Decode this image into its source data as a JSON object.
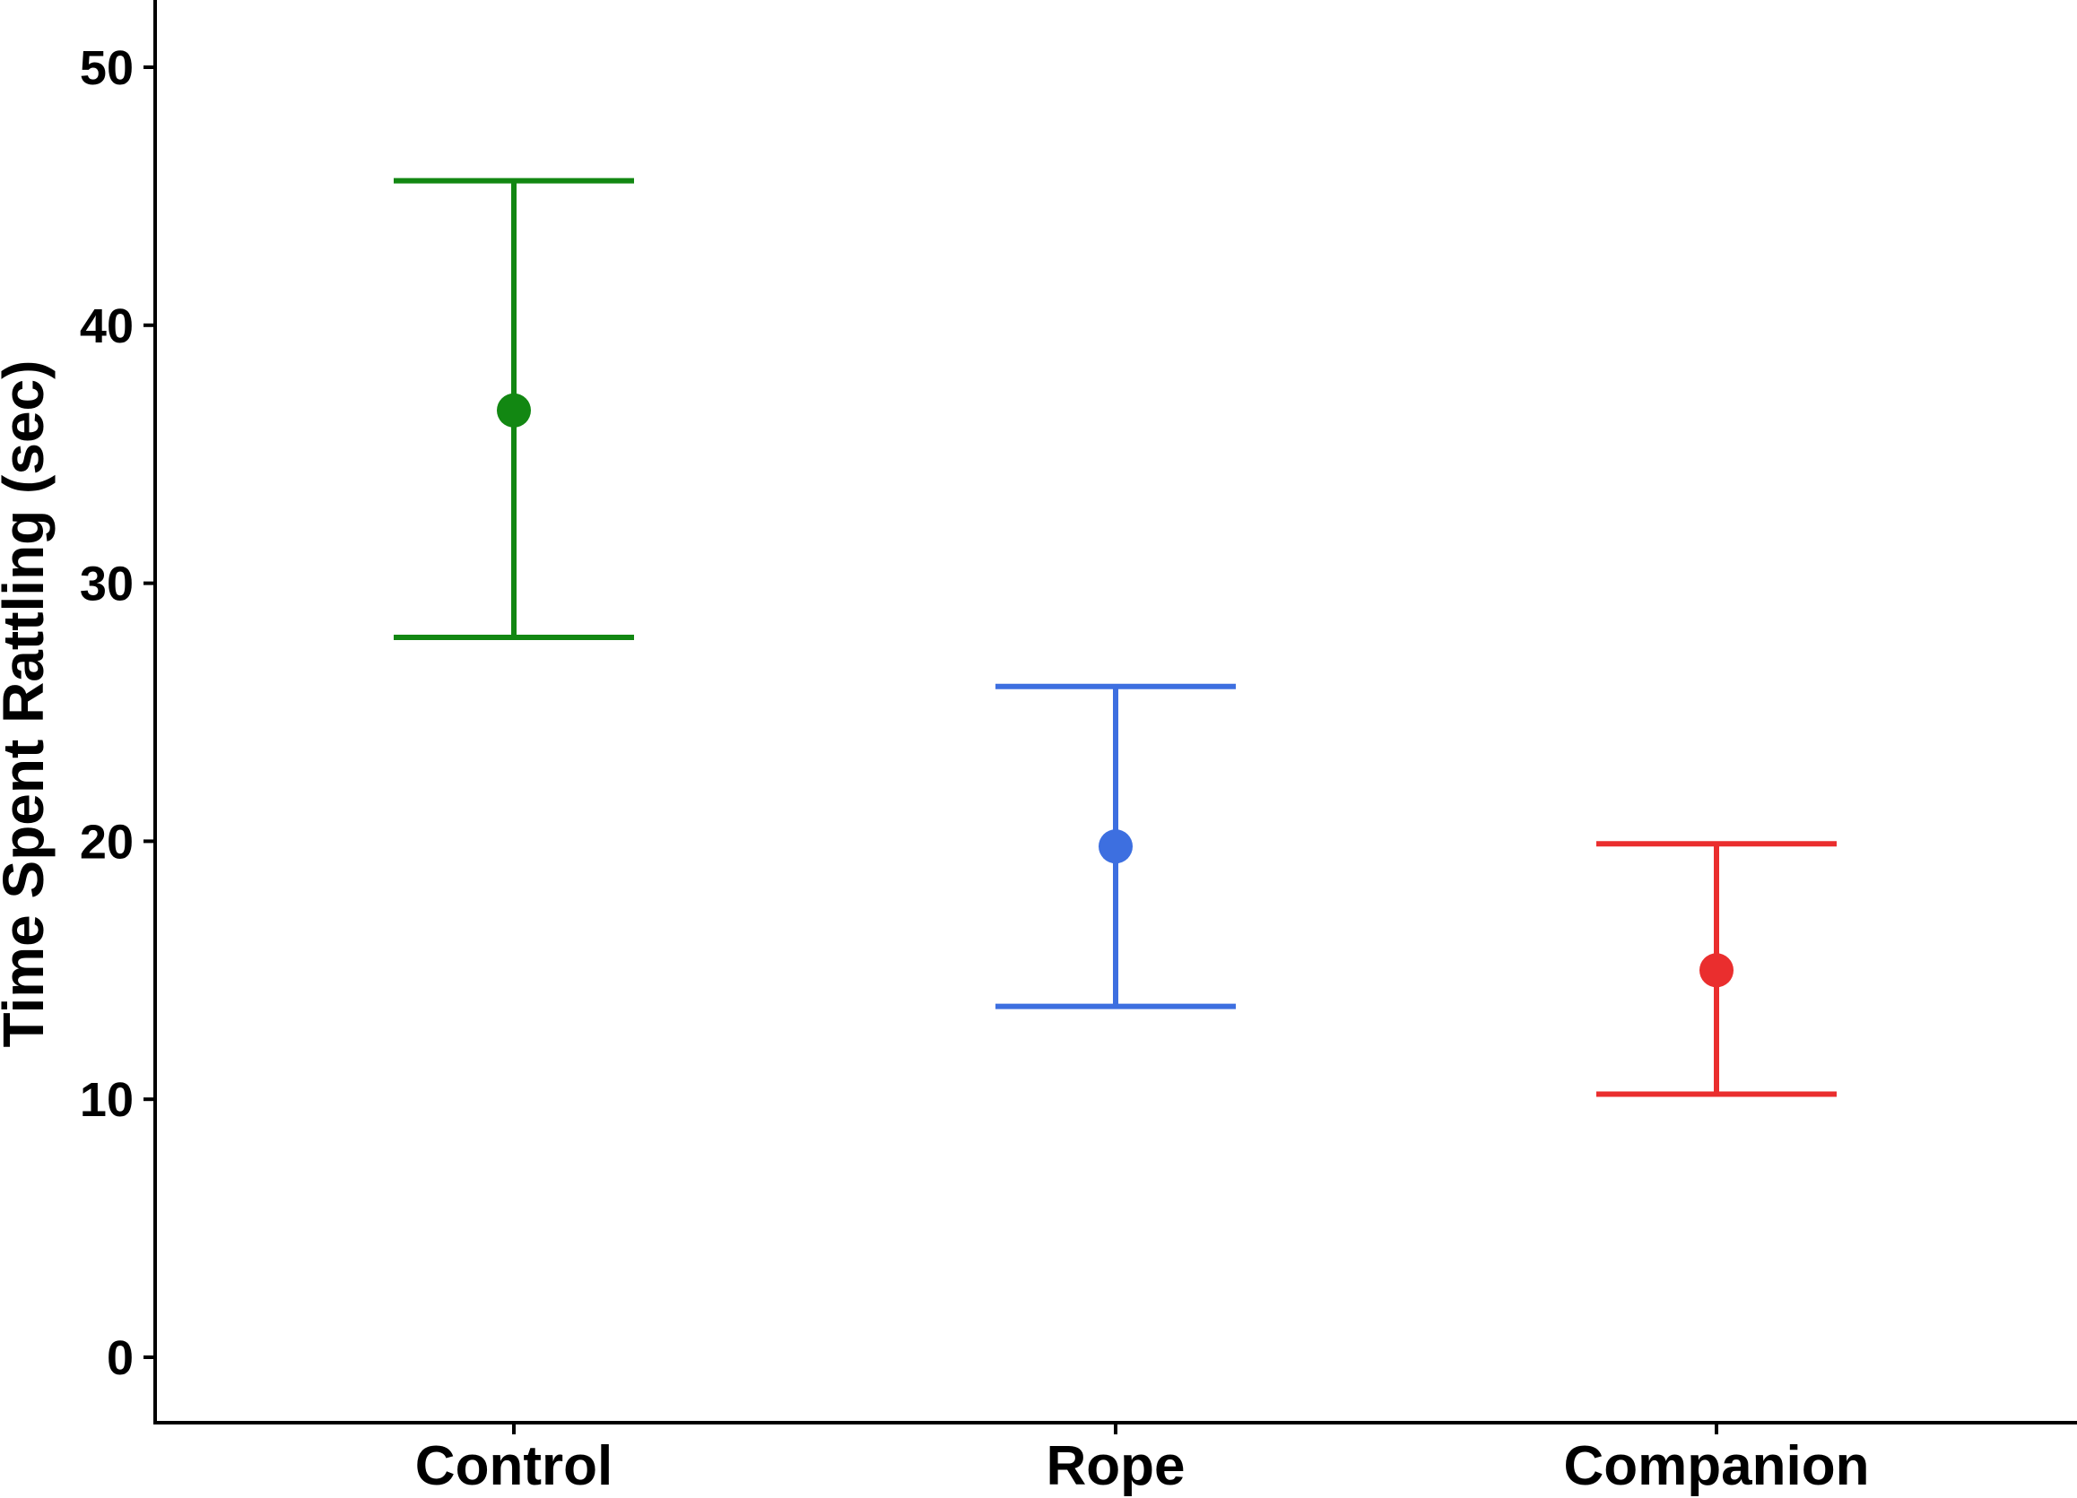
{
  "chart_data": {
    "type": "scatter",
    "subtype": "mean-with-error-bars",
    "title": "",
    "xlabel": "",
    "ylabel": "Time Spent Rattling (sec)",
    "ylim": [
      0,
      50
    ],
    "yticks": [
      0,
      10,
      20,
      30,
      40,
      50
    ],
    "categories": [
      "Control",
      "Rope",
      "Companion"
    ],
    "points": [
      {
        "category": "Control",
        "mean": 36.7,
        "lower": 27.9,
        "upper": 45.6,
        "color": "#128712"
      },
      {
        "category": "Rope",
        "mean": 19.8,
        "lower": 13.6,
        "upper": 26.0,
        "color": "#3d6fe0"
      },
      {
        "category": "Companion",
        "mean": 15.0,
        "lower": 10.2,
        "upper": 19.9,
        "color": "#ea2e2e"
      }
    ],
    "grid": false,
    "legend": "none"
  }
}
